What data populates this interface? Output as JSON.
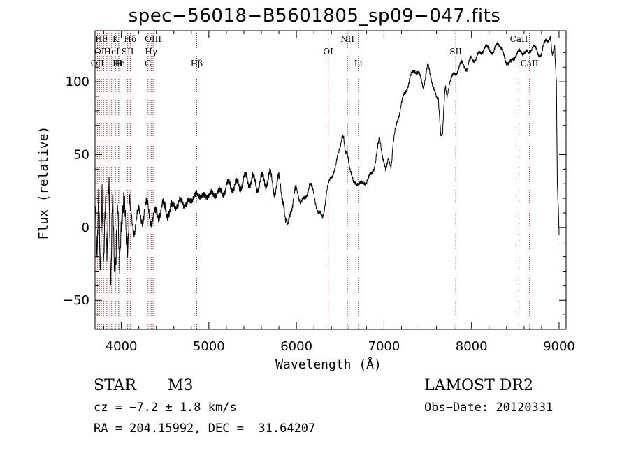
{
  "chart_data": {
    "type": "line",
    "title": "spec−56018−B5601805_sp09−047.fits",
    "xlabel": "Wavelength (Å)",
    "ylabel": "Flux (relative)",
    "xlim": [
      3700,
      9080
    ],
    "ylim": [
      -70,
      135
    ],
    "xticks": [
      4000,
      5000,
      6000,
      7000,
      8000,
      9000
    ],
    "yticks": [
      -50,
      0,
      50,
      100
    ],
    "ytick_labels": [
      "−50",
      "0",
      "50",
      "100"
    ],
    "grid": false,
    "line_color": "#000000",
    "marker_color": "#b03030",
    "series": [
      {
        "x": [
          3700,
          3720,
          3740,
          3760,
          3780,
          3800,
          3820,
          3840,
          3860,
          3880,
          3900,
          3920,
          3940,
          3960,
          3980,
          4000,
          4030,
          4060,
          4100,
          4150,
          4200,
          4250,
          4300,
          4350,
          4400,
          4450,
          4500,
          4550,
          4600,
          4650,
          4700,
          4750,
          4800,
          4850,
          4900,
          4950,
          5000,
          5050,
          5100,
          5150,
          5200,
          5250,
          5300,
          5350,
          5400,
          5450,
          5500,
          5550,
          5600,
          5650,
          5700,
          5750,
          5800,
          5830,
          5860,
          5880,
          5900,
          5920,
          5950,
          6000,
          6050,
          6100,
          6150,
          6200,
          6250,
          6300,
          6350,
          6400,
          6450,
          6500,
          6540,
          6560,
          6580,
          6600,
          6650,
          6700,
          6750,
          6800,
          6850,
          6900,
          6950,
          7000,
          7020,
          7050,
          7080,
          7100,
          7150,
          7200,
          7250,
          7300,
          7350,
          7400,
          7450,
          7500,
          7550,
          7600,
          7620,
          7650,
          7670,
          7680,
          7700,
          7720,
          7750,
          7800,
          7850,
          7900,
          7950,
          8000,
          8050,
          8100,
          8150,
          8200,
          8250,
          8300,
          8350,
          8400,
          8450,
          8500,
          8550,
          8600,
          8650,
          8700,
          8750,
          8800,
          8850,
          8900,
          8920,
          8950,
          8970,
          8980,
          8990,
          9000
        ],
        "y": [
          5,
          -15,
          25,
          -40,
          30,
          -30,
          15,
          -10,
          20,
          -25,
          10,
          -15,
          -25,
          15,
          -20,
          -5,
          15,
          -5,
          10,
          0,
          12,
          5,
          15,
          5,
          12,
          8,
          15,
          10,
          18,
          12,
          20,
          15,
          22,
          18,
          25,
          20,
          25,
          18,
          28,
          22,
          30,
          25,
          32,
          28,
          33,
          30,
          35,
          28,
          32,
          30,
          38,
          25,
          32,
          20,
          15,
          5,
          0,
          10,
          15,
          25,
          18,
          20,
          30,
          22,
          10,
          8,
          25,
          35,
          42,
          58,
          62,
          52,
          50,
          45,
          30,
          32,
          28,
          32,
          36,
          45,
          60,
          45,
          38,
          48,
          42,
          55,
          72,
          85,
          95,
          102,
          108,
          105,
          98,
          110,
          100,
          88,
          90,
          65,
          62,
          80,
          95,
          92,
          100,
          105,
          110,
          112,
          108,
          118,
          115,
          120,
          122,
          125,
          118,
          128,
          120,
          115,
          112,
          118,
          120,
          122,
          118,
          125,
          120,
          120,
          128,
          130,
          118,
          125,
          100,
          30,
          15,
          -5
        ]
      }
    ],
    "annotations": [
      {
        "x": 3727,
        "label": "OII",
        "row": 3
      },
      {
        "x": 3750,
        "label": "OI",
        "row": 2
      },
      {
        "x": 3771,
        "label": "Hθ",
        "row": 1
      },
      {
        "x": 3798,
        "label": "",
        "row": 0
      },
      {
        "x": 3835,
        "label": "",
        "row": 0
      },
      {
        "x": 3869,
        "label": "",
        "row": 0
      },
      {
        "x": 3889,
        "label": "HeI",
        "row": 2
      },
      {
        "x": 3934,
        "label": "K",
        "row": 1
      },
      {
        "x": 3970,
        "label": "Hη",
        "row": 3
      },
      {
        "x": 3970,
        "label": "H",
        "row": 3
      },
      {
        "x": 4072,
        "label": "SII",
        "row": 2
      },
      {
        "x": 4102,
        "label": "Hδ",
        "row": 1
      },
      {
        "x": 4305,
        "label": "G",
        "row": 3
      },
      {
        "x": 4340,
        "label": "Hγ",
        "row": 2
      },
      {
        "x": 4363,
        "label": "OIII",
        "row": 1
      },
      {
        "x": 4861,
        "label": "Hβ",
        "row": 3
      },
      {
        "x": 6363,
        "label": "OI",
        "row": 2
      },
      {
        "x": 6583,
        "label": "NII",
        "row": 1
      },
      {
        "x": 6707,
        "label": "Li",
        "row": 3
      },
      {
        "x": 7820,
        "label": "SII",
        "row": 2
      },
      {
        "x": 8542,
        "label": "CaII",
        "row": 1
      },
      {
        "x": 8662,
        "label": "CaII",
        "row": 3
      }
    ]
  },
  "info": {
    "object_class": "STAR",
    "subclass": "M3",
    "survey": "LAMOST DR2",
    "redshift": "cz = −7.2 ± 1.8 km/s",
    "obs_date": "Obs−Date: 20120331",
    "coords": "RA = 204.15992, DEC =  31.64207"
  }
}
